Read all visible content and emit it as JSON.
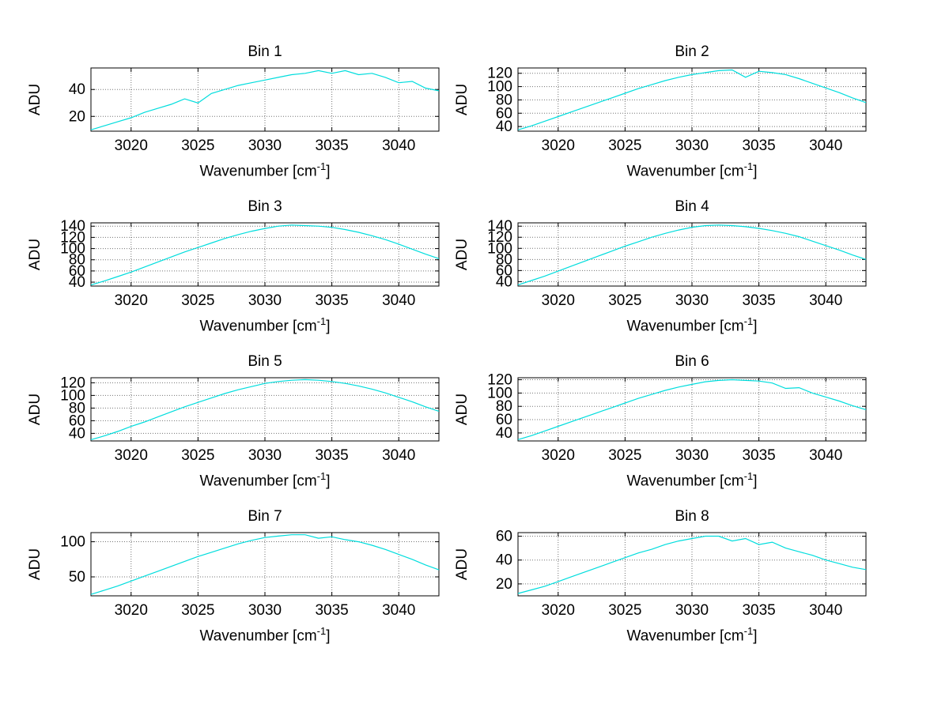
{
  "labels": {
    "ylabel": "ADU",
    "xlabel_base": "Wavenumber [cm",
    "xlabel_sup": "-1",
    "xlabel_close": "]"
  },
  "style": {
    "background": "#ffffff",
    "line_color": "#00dddd",
    "grid_color": "#737373",
    "axis_color": "#000000"
  },
  "chart_data": [
    {
      "type": "line",
      "title": "Bin 1",
      "ylabel": "ADU",
      "xlabel": "Wavenumber [cm⁻¹]",
      "xlim": [
        3017,
        3043
      ],
      "ylim": [
        9,
        56
      ],
      "xticks": [
        3020,
        3025,
        3030,
        3035,
        3040
      ],
      "yticks": [
        20,
        40
      ],
      "grid": true,
      "legend": false,
      "x": [
        3017,
        3018,
        3019,
        3020,
        3021,
        3022,
        3023,
        3024,
        3025,
        3026,
        3027,
        3028,
        3029,
        3030,
        3031,
        3032,
        3033,
        3034,
        3035,
        3036,
        3037,
        3038,
        3039,
        3040,
        3041,
        3042,
        3043
      ],
      "y": [
        10,
        13,
        16,
        19,
        23,
        26,
        29,
        33,
        30,
        37,
        40,
        43,
        45,
        47,
        49,
        51,
        52,
        54,
        52,
        54,
        51,
        52,
        49,
        45,
        46,
        41,
        39
      ]
    },
    {
      "type": "line",
      "title": "Bin 2",
      "ylabel": "ADU",
      "xlabel": "Wavenumber [cm⁻¹]",
      "xlim": [
        3017,
        3043
      ],
      "ylim": [
        33,
        128
      ],
      "xticks": [
        3020,
        3025,
        3030,
        3035,
        3040
      ],
      "yticks": [
        40,
        60,
        80,
        100,
        120
      ],
      "grid": true,
      "legend": false,
      "x": [
        3017,
        3018,
        3019,
        3020,
        3021,
        3022,
        3023,
        3024,
        3025,
        3026,
        3027,
        3028,
        3029,
        3030,
        3031,
        3032,
        3033,
        3034,
        3035,
        3036,
        3037,
        3038,
        3039,
        3040,
        3041,
        3042,
        3043
      ],
      "y": [
        35,
        41,
        48,
        55,
        62,
        69,
        76,
        83,
        90,
        97,
        103,
        109,
        114,
        118,
        121,
        124,
        125,
        114,
        123,
        121,
        118,
        112,
        105,
        98,
        91,
        83,
        76
      ]
    },
    {
      "type": "line",
      "title": "Bin 3",
      "ylabel": "ADU",
      "xlabel": "Wavenumber [cm⁻¹]",
      "xlim": [
        3017,
        3043
      ],
      "ylim": [
        33,
        146
      ],
      "xticks": [
        3020,
        3025,
        3030,
        3035,
        3040
      ],
      "yticks": [
        40,
        60,
        80,
        100,
        120,
        140
      ],
      "grid": true,
      "legend": false,
      "x": [
        3017,
        3018,
        3019,
        3020,
        3021,
        3022,
        3023,
        3024,
        3025,
        3026,
        3027,
        3028,
        3029,
        3030,
        3031,
        3032,
        3033,
        3034,
        3035,
        3036,
        3037,
        3038,
        3039,
        3040,
        3041,
        3042,
        3043
      ],
      "y": [
        35,
        42,
        50,
        58,
        67,
        76,
        85,
        94,
        102,
        110,
        118,
        125,
        131,
        136,
        140,
        142,
        141,
        140,
        138,
        134,
        129,
        123,
        116,
        108,
        99,
        90,
        82
      ]
    },
    {
      "type": "line",
      "title": "Bin 4",
      "ylabel": "ADU",
      "xlabel": "Wavenumber [cm⁻¹]",
      "xlim": [
        3017,
        3043
      ],
      "ylim": [
        32,
        146
      ],
      "xticks": [
        3020,
        3025,
        3030,
        3035,
        3040
      ],
      "yticks": [
        40,
        60,
        80,
        100,
        120,
        140
      ],
      "grid": true,
      "legend": false,
      "x": [
        3017,
        3018,
        3019,
        3020,
        3021,
        3022,
        3023,
        3024,
        3025,
        3026,
        3027,
        3028,
        3029,
        3030,
        3031,
        3032,
        3033,
        3034,
        3035,
        3036,
        3037,
        3038,
        3039,
        3040,
        3041,
        3042,
        3043
      ],
      "y": [
        34,
        42,
        50,
        59,
        68,
        77,
        86,
        95,
        104,
        112,
        120,
        127,
        133,
        138,
        141,
        142,
        141,
        139,
        136,
        132,
        127,
        121,
        113,
        105,
        97,
        88,
        80
      ]
    },
    {
      "type": "line",
      "title": "Bin 5",
      "ylabel": "ADU",
      "xlabel": "Wavenumber [cm⁻¹]",
      "xlim": [
        3017,
        3043
      ],
      "ylim": [
        28,
        128
      ],
      "xticks": [
        3020,
        3025,
        3030,
        3035,
        3040
      ],
      "yticks": [
        40,
        60,
        80,
        100,
        120
      ],
      "grid": true,
      "legend": false,
      "x": [
        3017,
        3018,
        3019,
        3020,
        3021,
        3022,
        3023,
        3024,
        3025,
        3026,
        3027,
        3028,
        3029,
        3030,
        3031,
        3032,
        3033,
        3034,
        3035,
        3036,
        3037,
        3038,
        3039,
        3040,
        3041,
        3042,
        3043
      ],
      "y": [
        30,
        36,
        43,
        51,
        58,
        66,
        74,
        82,
        89,
        96,
        103,
        109,
        114,
        119,
        122,
        124,
        125,
        124,
        122,
        119,
        115,
        110,
        104,
        97,
        90,
        82,
        75
      ]
    },
    {
      "type": "line",
      "title": "Bin 6",
      "ylabel": "ADU",
      "xlabel": "Wavenumber [cm⁻¹]",
      "xlim": [
        3017,
        3043
      ],
      "ylim": [
        28,
        123
      ],
      "xticks": [
        3020,
        3025,
        3030,
        3035,
        3040
      ],
      "yticks": [
        40,
        60,
        80,
        100,
        120
      ],
      "grid": true,
      "legend": false,
      "x": [
        3017,
        3018,
        3019,
        3020,
        3021,
        3022,
        3023,
        3024,
        3025,
        3026,
        3027,
        3028,
        3029,
        3030,
        3031,
        3032,
        3033,
        3034,
        3035,
        3036,
        3037,
        3038,
        3039,
        3040,
        3041,
        3042,
        3043
      ],
      "y": [
        30,
        36,
        43,
        50,
        57,
        64,
        71,
        78,
        85,
        92,
        98,
        104,
        109,
        113,
        117,
        119,
        120,
        119,
        118,
        115,
        107,
        108,
        100,
        94,
        88,
        81,
        75
      ]
    },
    {
      "type": "line",
      "title": "Bin 7",
      "ylabel": "ADU",
      "xlabel": "Wavenumber [cm⁻¹]",
      "xlim": [
        3017,
        3043
      ],
      "ylim": [
        23,
        113
      ],
      "xticks": [
        3020,
        3025,
        3030,
        3035,
        3040
      ],
      "yticks": [
        50,
        100
      ],
      "grid": true,
      "legend": false,
      "x": [
        3017,
        3018,
        3019,
        3020,
        3021,
        3022,
        3023,
        3024,
        3025,
        3026,
        3027,
        3028,
        3029,
        3030,
        3031,
        3032,
        3033,
        3034,
        3035,
        3036,
        3037,
        3038,
        3039,
        3040,
        3041,
        3042,
        3043
      ],
      "y": [
        25,
        31,
        37,
        44,
        51,
        58,
        65,
        72,
        79,
        85,
        91,
        97,
        102,
        106,
        108,
        110,
        110,
        105,
        107,
        103,
        100,
        95,
        89,
        82,
        75,
        67,
        60
      ]
    },
    {
      "type": "line",
      "title": "Bin 8",
      "ylabel": "ADU",
      "xlabel": "Wavenumber [cm⁻¹]",
      "xlim": [
        3017,
        3043
      ],
      "ylim": [
        10,
        63
      ],
      "xticks": [
        3020,
        3025,
        3030,
        3035,
        3040
      ],
      "yticks": [
        20,
        40,
        60
      ],
      "grid": true,
      "legend": false,
      "x": [
        3017,
        3018,
        3019,
        3020,
        3021,
        3022,
        3023,
        3024,
        3025,
        3026,
        3027,
        3028,
        3029,
        3030,
        3031,
        3032,
        3033,
        3034,
        3035,
        3036,
        3037,
        3038,
        3039,
        3040,
        3041,
        3042,
        3043
      ],
      "y": [
        12,
        15,
        18,
        22,
        26,
        30,
        34,
        38,
        42,
        46,
        49,
        53,
        56,
        58,
        60,
        60,
        56,
        58,
        53,
        55,
        50,
        47,
        44,
        40,
        37,
        34,
        32
      ]
    }
  ]
}
